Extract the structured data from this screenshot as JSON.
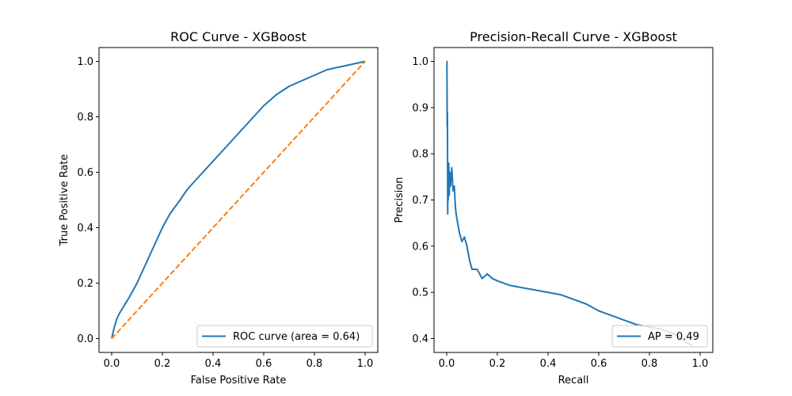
{
  "colors": {
    "series_primary": "#1f77b4",
    "series_secondary": "#ff7f0e",
    "axes": "#000000",
    "background": "#ffffff"
  },
  "chart_data": [
    {
      "type": "line",
      "title": "ROC Curve - XGBoost",
      "xlabel": "False Positive Rate",
      "ylabel": "True Positive Rate",
      "xlim": [
        -0.05,
        1.05
      ],
      "ylim": [
        -0.05,
        1.05
      ],
      "xticks": [
        0.0,
        0.2,
        0.4,
        0.6,
        0.8,
        1.0
      ],
      "yticks": [
        0.0,
        0.2,
        0.4,
        0.6,
        0.8,
        1.0
      ],
      "xtick_labels": [
        "0.0",
        "0.2",
        "0.4",
        "0.6",
        "0.8",
        "1.0"
      ],
      "ytick_labels": [
        "0.0",
        "0.2",
        "0.4",
        "0.6",
        "0.8",
        "1.0"
      ],
      "grid": false,
      "legend_position": "lower-right",
      "series": [
        {
          "name": "ROC curve (area = 0.64)",
          "color": "#1f77b4",
          "style": "solid",
          "x": [
            0.0,
            0.005,
            0.01,
            0.02,
            0.03,
            0.05,
            0.07,
            0.1,
            0.13,
            0.16,
            0.2,
            0.23,
            0.27,
            0.3,
            0.35,
            0.4,
            0.45,
            0.5,
            0.55,
            0.6,
            0.65,
            0.7,
            0.75,
            0.8,
            0.85,
            0.9,
            0.95,
            1.0
          ],
          "y": [
            0.0,
            0.02,
            0.04,
            0.07,
            0.09,
            0.12,
            0.15,
            0.2,
            0.26,
            0.32,
            0.4,
            0.45,
            0.5,
            0.54,
            0.59,
            0.64,
            0.69,
            0.74,
            0.79,
            0.84,
            0.88,
            0.91,
            0.93,
            0.95,
            0.97,
            0.98,
            0.99,
            1.0
          ]
        },
        {
          "name": "",
          "color": "#ff7f0e",
          "style": "dashed",
          "x": [
            0.0,
            1.0
          ],
          "y": [
            0.0,
            1.0
          ]
        }
      ]
    },
    {
      "type": "line",
      "title": "Precision-Recall Curve - XGBoost",
      "xlabel": "Recall",
      "ylabel": "Precision",
      "xlim": [
        -0.05,
        1.05
      ],
      "ylim": [
        0.37,
        1.03
      ],
      "xticks": [
        0.0,
        0.2,
        0.4,
        0.6,
        0.8,
        1.0
      ],
      "yticks": [
        0.4,
        0.5,
        0.6,
        0.7,
        0.8,
        0.9,
        1.0
      ],
      "xtick_labels": [
        "0.0",
        "0.2",
        "0.4",
        "0.6",
        "0.8",
        "1.0"
      ],
      "ytick_labels": [
        "0.4",
        "0.5",
        "0.6",
        "0.7",
        "0.8",
        "0.9",
        "1.0"
      ],
      "grid": false,
      "legend_position": "lower-right",
      "series": [
        {
          "name": "AP = 0.49",
          "color": "#1f77b4",
          "style": "solid",
          "x": [
            0.0,
            0.001,
            0.002,
            0.003,
            0.004,
            0.005,
            0.006,
            0.008,
            0.01,
            0.012,
            0.015,
            0.02,
            0.025,
            0.03,
            0.035,
            0.04,
            0.05,
            0.06,
            0.07,
            0.08,
            0.09,
            0.1,
            0.12,
            0.14,
            0.16,
            0.18,
            0.2,
            0.25,
            0.3,
            0.35,
            0.4,
            0.45,
            0.5,
            0.55,
            0.6,
            0.65,
            0.7,
            0.75,
            0.8,
            0.85,
            0.9,
            0.95,
            0.97
          ],
          "y": [
            1.0,
            1.0,
            0.86,
            0.89,
            0.67,
            0.74,
            0.7,
            0.78,
            0.71,
            0.76,
            0.73,
            0.77,
            0.72,
            0.73,
            0.68,
            0.66,
            0.63,
            0.61,
            0.62,
            0.6,
            0.57,
            0.55,
            0.55,
            0.53,
            0.54,
            0.53,
            0.525,
            0.515,
            0.51,
            0.505,
            0.5,
            0.495,
            0.485,
            0.475,
            0.46,
            0.45,
            0.44,
            0.43,
            0.425,
            0.42,
            0.41,
            0.39,
            0.385
          ]
        }
      ]
    }
  ]
}
